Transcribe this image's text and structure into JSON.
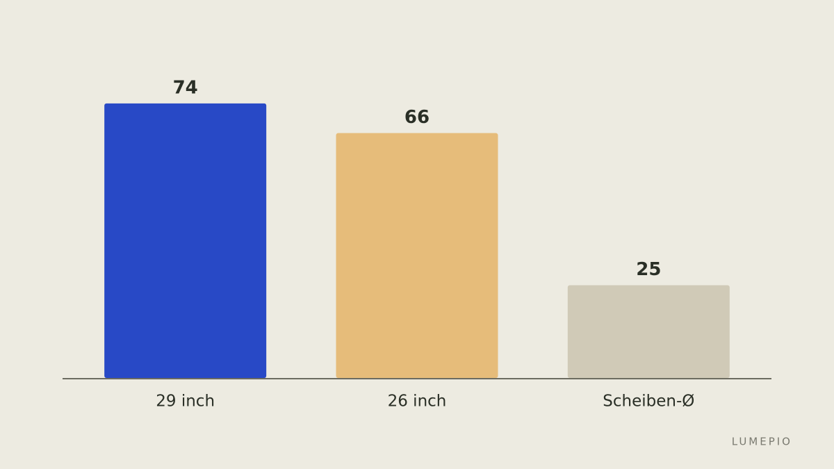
{
  "chart_data": {
    "type": "bar",
    "categories": [
      "29 inch",
      "26 inch",
      "Scheiben-Ø"
    ],
    "values": [
      74,
      66,
      25
    ],
    "colors": [
      "#2849c6",
      "#e6bc7a",
      "#d0cab7"
    ],
    "watermark": "LUMEPIO"
  }
}
